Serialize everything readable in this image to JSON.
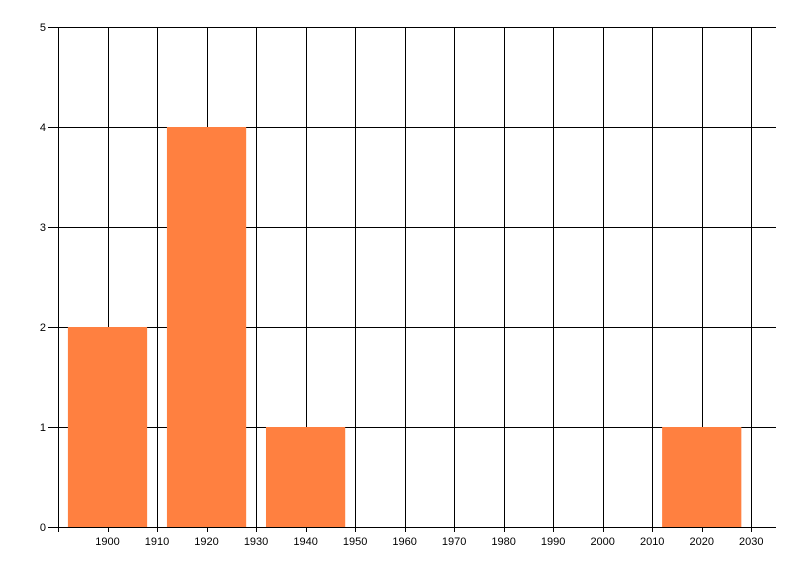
{
  "chart_data": {
    "type": "bar",
    "title": "",
    "xlabel": "",
    "ylabel": "",
    "x": [
      1900,
      1920,
      1940,
      2020
    ],
    "values": [
      2,
      4,
      1,
      1
    ],
    "bar_span_years": 16,
    "xlim": [
      1890,
      2035
    ],
    "ylim": [
      0,
      5
    ],
    "xticks": [
      1900,
      1910,
      1920,
      1930,
      1940,
      1950,
      1960,
      1970,
      1980,
      1990,
      2000,
      2010,
      2020,
      2030
    ],
    "yticks": [
      0,
      1,
      2,
      3,
      4,
      5
    ],
    "grid": true,
    "legend": "none",
    "colors": {
      "bar": "#FF8040",
      "grid": "#000000"
    }
  }
}
